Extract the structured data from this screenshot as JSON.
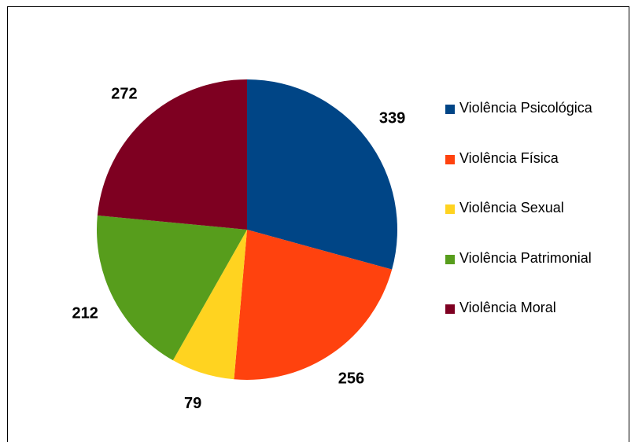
{
  "chart_data": {
    "type": "pie",
    "categories": [
      "Violência Psicológica",
      "Violência Física",
      "Violência Sexual",
      "Violência Patrimonial",
      "Violência Moral"
    ],
    "values": [
      339,
      256,
      79,
      212,
      272
    ],
    "colors": [
      "#004586",
      "#ff420e",
      "#ffd320",
      "#579d1c",
      "#7e0021"
    ],
    "legend": "right"
  }
}
